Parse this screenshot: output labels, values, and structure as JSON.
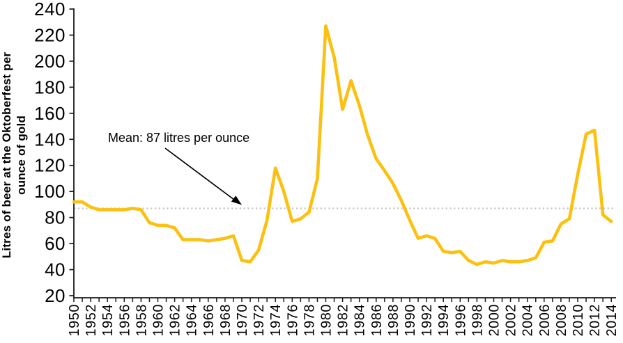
{
  "chart_data": {
    "type": "line",
    "title": "",
    "ylabel_line1": "Litres of beer at the Oktoberfest per",
    "ylabel_line2": "ounce of gold",
    "xlabel": "",
    "ylim": [
      20,
      240
    ],
    "ytick_step": 20,
    "x_range": [
      1950,
      2014
    ],
    "x_tick_label_step": 2,
    "grid": false,
    "legend": "none",
    "mean_value": 87,
    "mean_label": "Mean: 87 litres per ounce",
    "line_color": "#FCC011",
    "mean_line_color": "#C4C4C4",
    "axis_color": "#1A1A1A",
    "series_name": "Litres of beer at the Oktoberfest per ounce of gold",
    "years": [
      1950,
      1951,
      1952,
      1953,
      1954,
      1955,
      1956,
      1957,
      1958,
      1959,
      1960,
      1961,
      1962,
      1963,
      1964,
      1965,
      1966,
      1967,
      1968,
      1969,
      1970,
      1971,
      1972,
      1973,
      1974,
      1975,
      1976,
      1977,
      1978,
      1979,
      1980,
      1981,
      1982,
      1983,
      1984,
      1985,
      1986,
      1987,
      1988,
      1989,
      1990,
      1991,
      1992,
      1993,
      1994,
      1995,
      1996,
      1997,
      1998,
      1999,
      2000,
      2001,
      2002,
      2003,
      2004,
      2005,
      2006,
      2007,
      2008,
      2009,
      2010,
      2011,
      2012,
      2013,
      2014
    ],
    "values": [
      92,
      92,
      88,
      86,
      86,
      86,
      86,
      87,
      86,
      76,
      74,
      74,
      72,
      63,
      63,
      63,
      62,
      63,
      64,
      66,
      47,
      46,
      55,
      78,
      118,
      100,
      77,
      79,
      84,
      110,
      227,
      203,
      163,
      185,
      166,
      143,
      125,
      116,
      106,
      93,
      78,
      64,
      66,
      64,
      54,
      53,
      54,
      47,
      44,
      46,
      45,
      47,
      46,
      46,
      47,
      49,
      61,
      62,
      75,
      79,
      113,
      144,
      147,
      82,
      77
    ]
  }
}
